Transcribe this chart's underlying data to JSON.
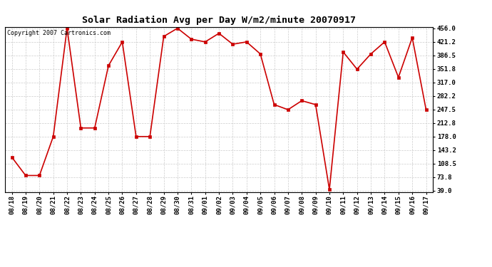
{
  "title": "Solar Radiation Avg per Day W/m2/minute 20070917",
  "copyright_text": "Copyright 2007 Cartronics.com",
  "labels": [
    "08/18",
    "08/19",
    "08/20",
    "08/21",
    "08/22",
    "08/23",
    "08/24",
    "08/25",
    "08/26",
    "08/27",
    "08/28",
    "08/29",
    "08/30",
    "08/31",
    "09/01",
    "09/02",
    "09/03",
    "09/04",
    "09/05",
    "09/06",
    "09/07",
    "09/08",
    "09/09",
    "09/10",
    "09/11",
    "09/12",
    "09/13",
    "09/14",
    "09/15",
    "09/16",
    "09/17"
  ],
  "values": [
    125,
    78,
    78,
    178,
    456,
    200,
    200,
    360,
    421,
    178,
    178,
    435,
    456,
    428,
    421,
    443,
    415,
    421,
    390,
    260,
    247,
    270,
    260,
    42,
    395,
    351,
    390,
    421,
    330,
    432,
    247
  ],
  "ymin": 39.0,
  "ymax": 456.0,
  "yticks": [
    39.0,
    73.8,
    108.5,
    143.2,
    178.0,
    212.8,
    247.5,
    282.2,
    317.0,
    351.8,
    386.5,
    421.2,
    456.0
  ],
  "line_color": "#cc0000",
  "marker_color": "#cc0000",
  "bg_color": "#ffffff",
  "grid_color": "#cccccc",
  "title_fontsize": 9.5,
  "copyright_fontsize": 6.0,
  "tick_fontsize": 6.5,
  "ytick_fontsize": 6.5
}
